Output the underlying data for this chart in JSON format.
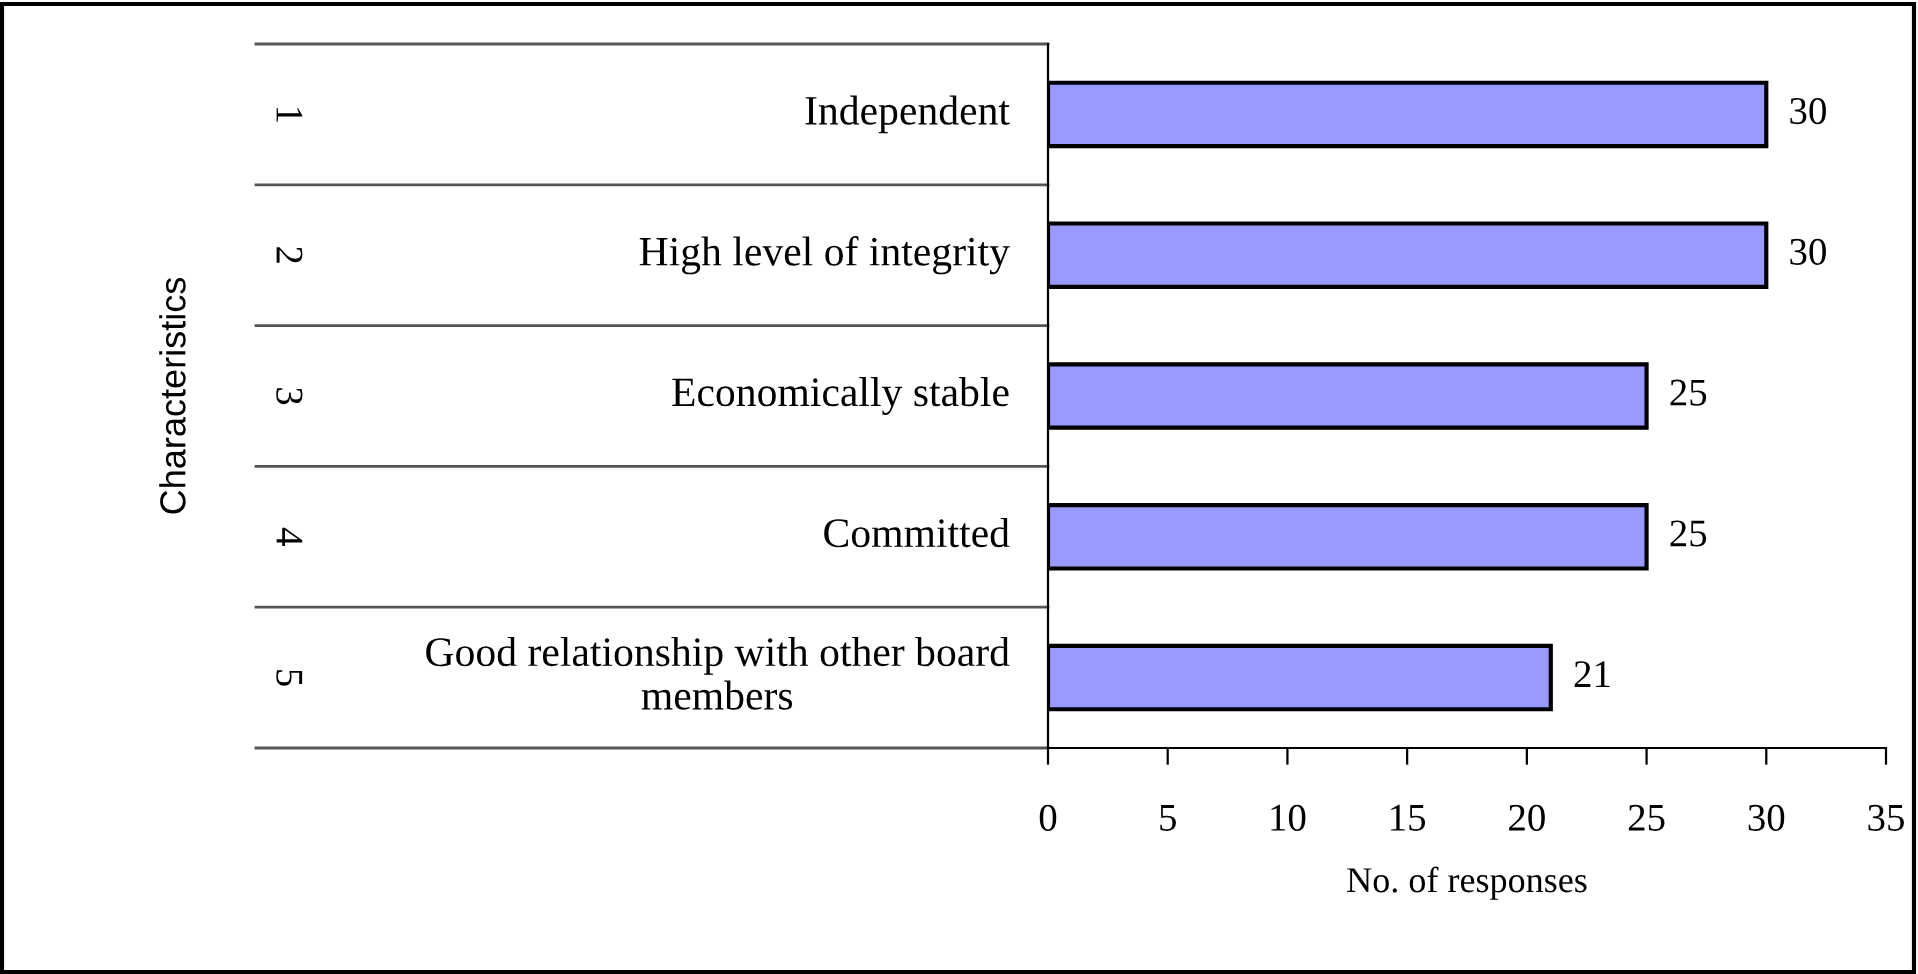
{
  "chart_data": {
    "type": "bar",
    "orientation": "horizontal",
    "xlabel": "No. of responses",
    "categories": [
      "Independent",
      "High level of integrity",
      "Economically stable",
      "Committed",
      "Good relationship with other board members"
    ],
    "values": [
      30,
      30,
      25,
      25,
      21
    ],
    "color": "#9999ff",
    "data_labels": true,
    "annotations": [
      "1",
      "2",
      "3",
      "4",
      "5",
      "Characteristics"
    ],
    "xlim": [
      0,
      35
    ],
    "xticks": [
      0,
      5,
      10,
      15,
      20,
      25,
      30,
      35
    ],
    "grid": false,
    "legend": false
  }
}
